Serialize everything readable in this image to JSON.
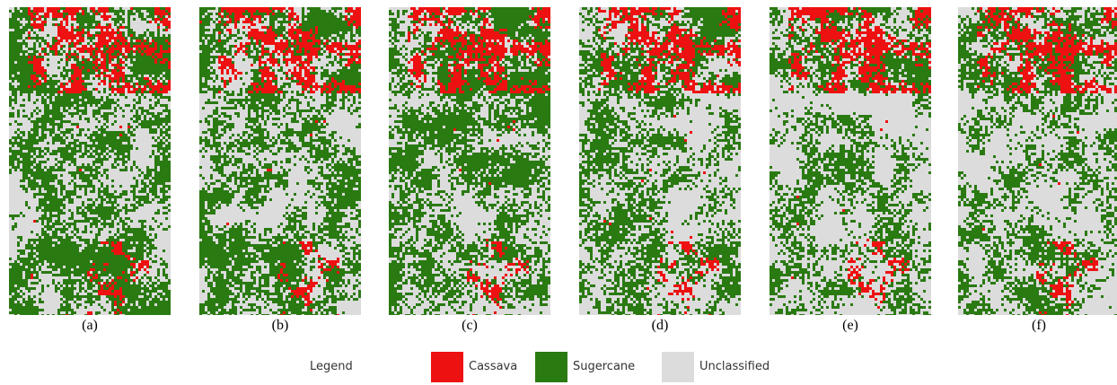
{
  "panels": [
    {
      "label": "(a)"
    },
    {
      "label": "(b)"
    },
    {
      "label": "(c)"
    },
    {
      "label": "(d)"
    },
    {
      "label": "(e)"
    },
    {
      "label": "(f)"
    }
  ],
  "legend": {
    "title": "Legend",
    "items": [
      {
        "name": "Cassava",
        "color": "#ee1111"
      },
      {
        "name": "Sugercane",
        "color": "#2a7a12"
      },
      {
        "name": "Unclassified",
        "color": "#dcdcdc"
      }
    ]
  }
}
